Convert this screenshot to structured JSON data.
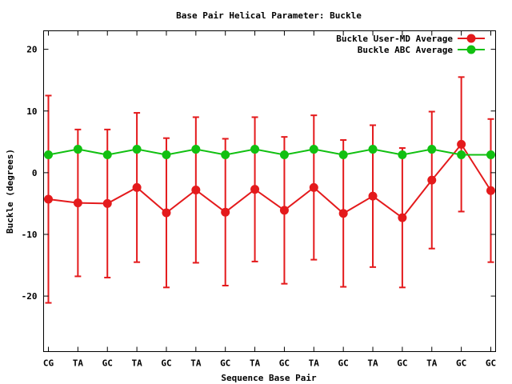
{
  "chart_data": {
    "type": "line",
    "title": "Base Pair Helical Parameter: Buckle",
    "xlabel": "Sequence Base Pair",
    "ylabel": "Buckle (degrees)",
    "categories": [
      "CG",
      "TA",
      "GC",
      "TA",
      "GC",
      "TA",
      "GC",
      "TA",
      "GC",
      "TA",
      "GC",
      "TA",
      "GC",
      "TA",
      "GC",
      "GC"
    ],
    "ylim": [
      -29,
      23
    ],
    "yticks": [
      20,
      10,
      0,
      -10,
      -20
    ],
    "ytick_labels": [
      "20",
      "10",
      "0",
      "-10",
      "-20"
    ],
    "legend_position": "top-right",
    "series": [
      {
        "name": "Buckle User-MD Average",
        "color": "#e41a1c",
        "values": [
          -4.3,
          -4.9,
          -5.0,
          -2.4,
          -6.5,
          -2.8,
          -6.4,
          -2.7,
          -6.1,
          -2.4,
          -6.6,
          -3.8,
          -7.3,
          -1.2,
          4.6,
          -2.9
        ],
        "errors": [
          16.8,
          11.9,
          12.0,
          12.1,
          12.1,
          11.8,
          11.9,
          11.7,
          11.9,
          11.7,
          11.9,
          11.5,
          11.3,
          11.1,
          10.9,
          11.6
        ]
      },
      {
        "name": "Buckle ABC Average",
        "color": "#11c011",
        "values": [
          2.9,
          3.8,
          2.9,
          3.8,
          2.9,
          3.8,
          2.9,
          3.8,
          2.9,
          3.8,
          2.9,
          3.8,
          2.9,
          3.8,
          2.9,
          2.9
        ],
        "errors": null
      }
    ]
  }
}
